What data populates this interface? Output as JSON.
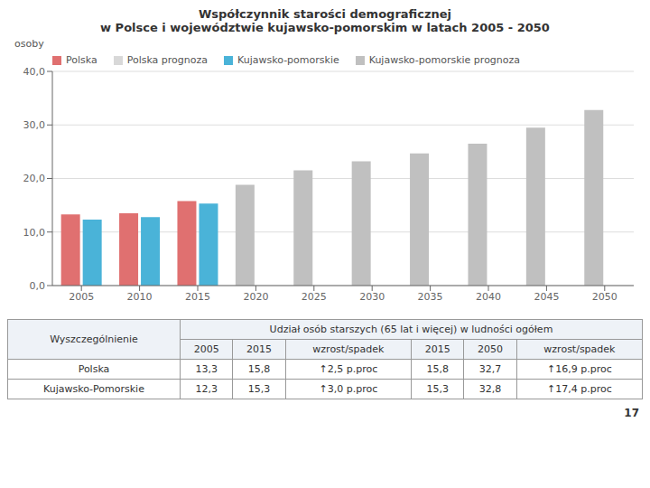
{
  "chart_data": {
    "type": "bar",
    "title": "Współczynnik starości demograficznej",
    "subtitle": "w Polsce i województwie kujawsko-pomorskim w latach 2005 - 2050",
    "y_label": "osoby",
    "categories": [
      "2005",
      "2010",
      "2015",
      "2020",
      "2025",
      "2030",
      "2035",
      "2040",
      "2045",
      "2050"
    ],
    "series": [
      {
        "name": "Polska",
        "color": "#e07070",
        "values": [
          13.3,
          13.5,
          15.8,
          null,
          null,
          null,
          null,
          null,
          null,
          null
        ]
      },
      {
        "name": "Polska prognoza",
        "color": "#d8d8d8",
        "values": [
          null,
          null,
          null,
          null,
          null,
          null,
          null,
          null,
          null,
          null
        ]
      },
      {
        "name": "Kujawsko-pomorskie",
        "color": "#4ab3d8",
        "values": [
          12.3,
          12.8,
          15.3,
          null,
          null,
          null,
          null,
          null,
          null,
          null
        ]
      },
      {
        "name": "Kujawsko-pomorskie prognoza",
        "color": "#c0c0c0",
        "values": [
          null,
          null,
          null,
          18.8,
          21.5,
          23.2,
          24.7,
          26.5,
          29.5,
          32.8
        ]
      }
    ],
    "ylim": [
      0,
      40
    ],
    "yticks": [
      {
        "value": 0,
        "label": "0,0"
      },
      {
        "value": 10,
        "label": "10,0"
      },
      {
        "value": 20,
        "label": "20,0"
      },
      {
        "value": 30,
        "label": "30,0"
      },
      {
        "value": 40,
        "label": "40,0"
      }
    ],
    "grid": true,
    "legend": "upper left",
    "table": {
      "header": "Udział osób starszych (65 lat i więcej) w ludności ogółem",
      "columns": [
        "Wyszczególnienie",
        "2005",
        "2015",
        "wzrost/spadek",
        "2015",
        "2050",
        "wzrost/spadek"
      ],
      "rows": [
        [
          "Polska",
          "13,3",
          "15,8",
          "↑2,5 p.proc",
          "15,8",
          "32,7",
          "↑16,9 p.proc"
        ],
        [
          "Kujawsko-Pomorskie",
          "12,3",
          "15,3",
          "↑3,0 p.proc",
          "15,3",
          "32,8",
          "↑17,4 p.proc"
        ]
      ]
    },
    "annotations": [
      "17"
    ]
  }
}
